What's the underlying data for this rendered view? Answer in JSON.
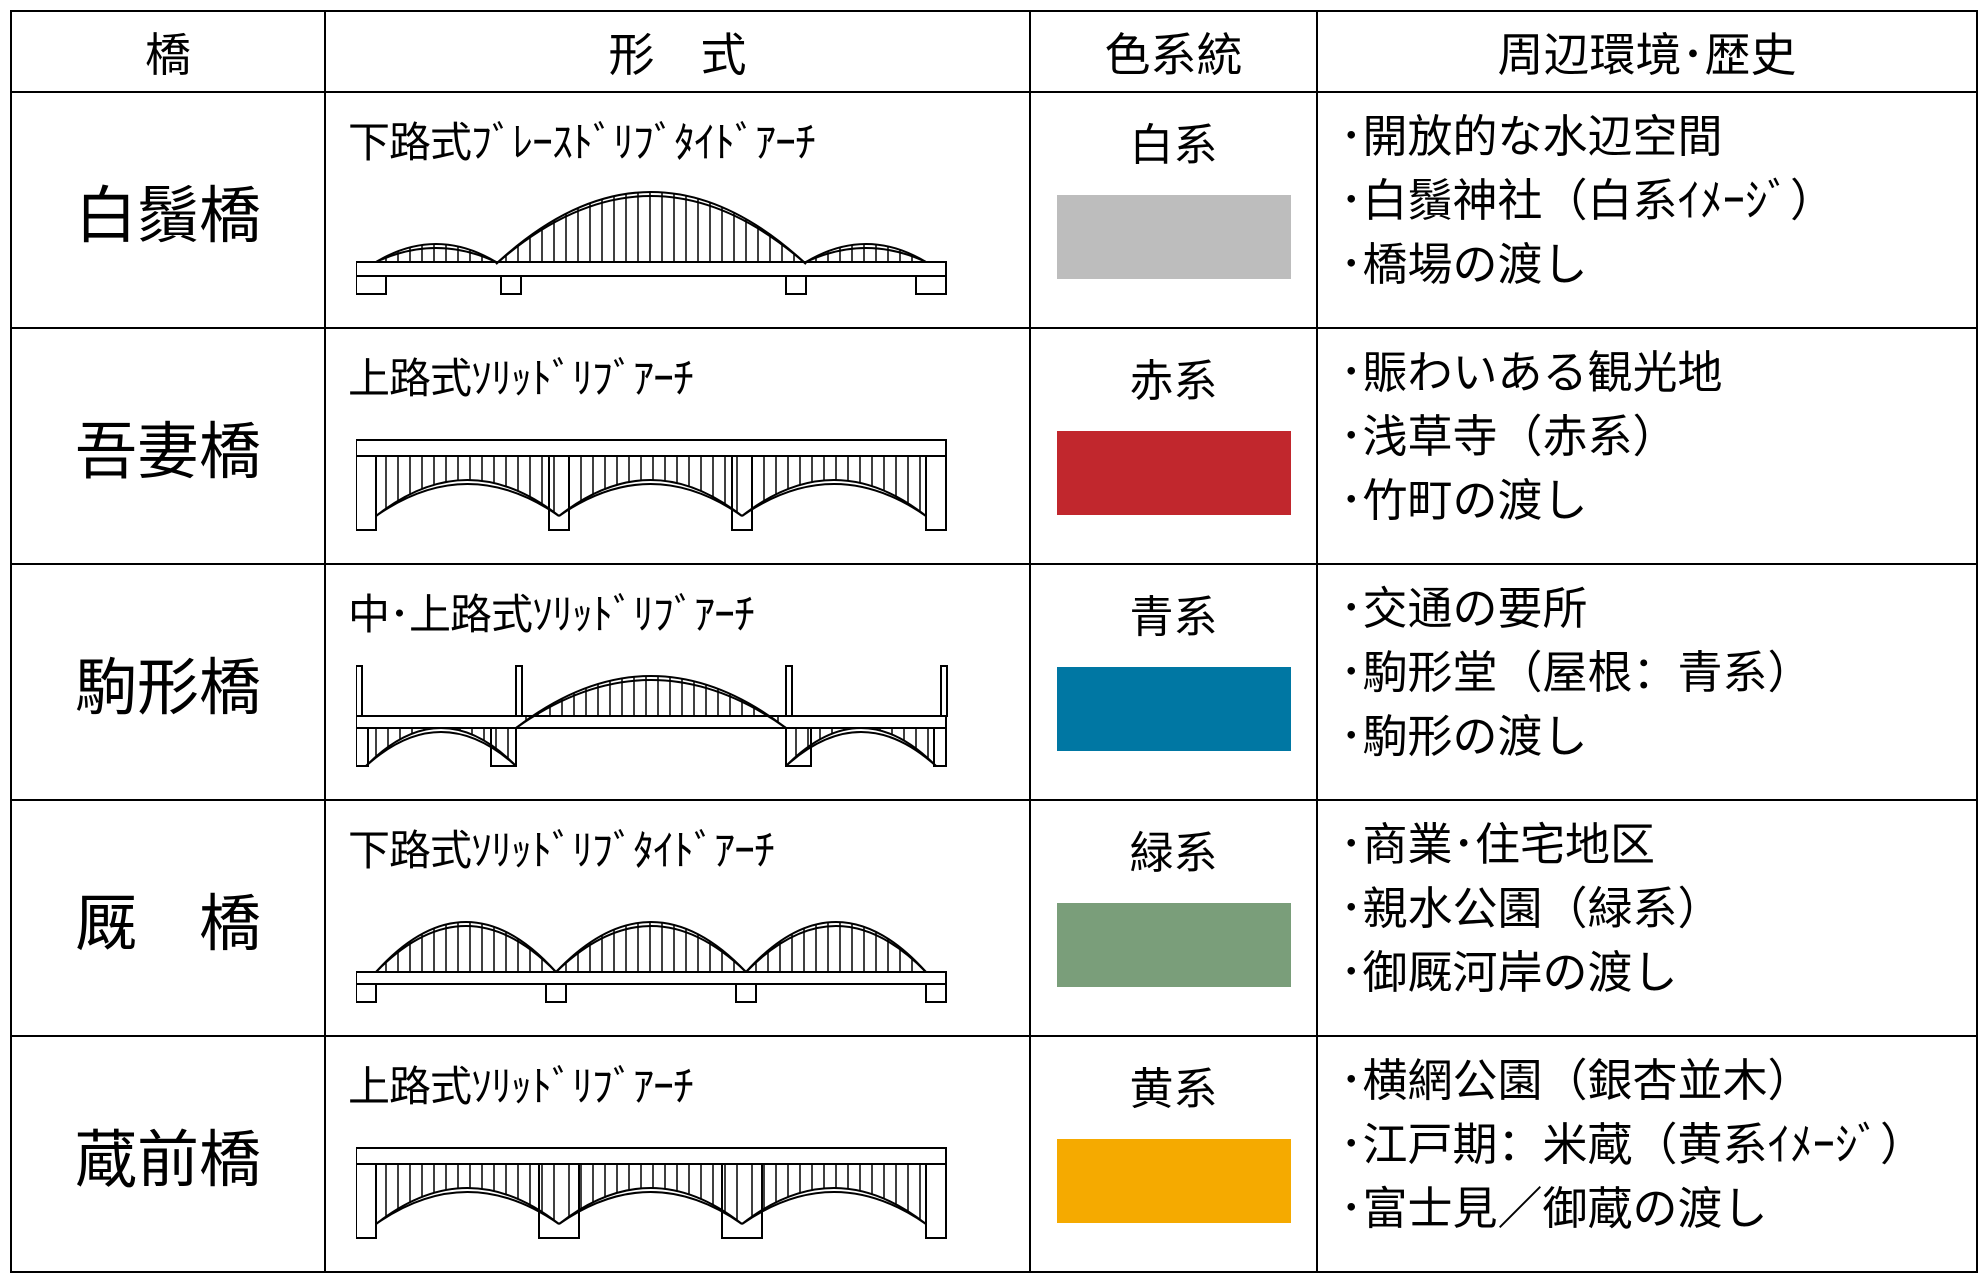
{
  "table": {
    "header": [
      "橋",
      "形　式",
      "色系統",
      "周辺環境･歴史"
    ],
    "rows": [
      {
        "name": "白鬚橋",
        "form": "下路式ﾌﾞﾚｰｽﾄﾞﾘﾌﾞﾀｲﾄﾞｱｰﾁ",
        "color_name": "白系",
        "swatch": "#bdbdbd",
        "notes": [
          "･開放的な水辺空間",
          "･白鬚神社（白系ｲﾒｰｼﾞ）",
          "･橋場の渡し"
        ]
      },
      {
        "name": "吾妻橋",
        "form": "上路式ｿﾘｯﾄﾞﾘﾌﾞｱｰﾁ",
        "color_name": "赤系",
        "swatch": "#c1272d",
        "notes": [
          "･賑わいある観光地",
          "･浅草寺（赤系）",
          "･竹町の渡し"
        ]
      },
      {
        "name": "駒形橋",
        "form": "中･上路式ｿﾘｯﾄﾞﾘﾌﾞｱｰﾁ",
        "color_name": "青系",
        "swatch": "#0077a3",
        "notes": [
          "･交通の要所",
          "･駒形堂（屋根：青系）",
          "･駒形の渡し"
        ]
      },
      {
        "name": "厩　橋",
        "form": "下路式ｿﾘｯﾄﾞﾘﾌﾞﾀｲﾄﾞｱｰﾁ",
        "color_name": "緑系",
        "swatch": "#7a9e7a",
        "notes": [
          "･商業･住宅地区",
          "･親水公園（緑系）",
          "･御厩河岸の渡し"
        ]
      },
      {
        "name": "蔵前橋",
        "form": "上路式ｿﾘｯﾄﾞﾘﾌﾞｱｰﾁ",
        "color_name": "黄系",
        "swatch": "#f5aa00",
        "notes": [
          "･横網公園（銀杏並木）",
          "･江戸期：米蔵（黄系ｲﾒｰｼﾞ）",
          "･富士見／御蔵の渡し"
        ]
      }
    ]
  }
}
